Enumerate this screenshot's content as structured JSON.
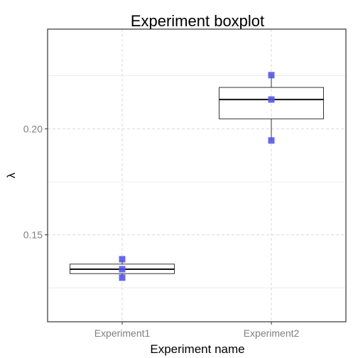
{
  "chart_data": {
    "type": "box",
    "title": "Experiment boxplot",
    "xlabel": "Experiment name",
    "ylabel": "λ",
    "categories": [
      "Experiment1",
      "Experiment2"
    ],
    "ylim": [
      0.109,
      0.247
    ],
    "yticks": [
      0.15,
      0.2
    ],
    "ytick_labels": [
      "0.15",
      "0.20"
    ],
    "grid": true,
    "boxes": [
      {
        "category": "Experiment1",
        "min": 0.1298,
        "q1": 0.1317,
        "median": 0.1338,
        "q3": 0.1362,
        "max": 0.1385
      },
      {
        "category": "Experiment2",
        "min": 0.1945,
        "q1": 0.2047,
        "median": 0.2138,
        "q3": 0.2195,
        "max": 0.2253
      }
    ],
    "points": [
      {
        "category": "Experiment1",
        "values": [
          0.1385,
          0.1338,
          0.1298
        ]
      },
      {
        "category": "Experiment2",
        "values": [
          0.2253,
          0.2138,
          0.1945
        ]
      }
    ],
    "point_color": "#5757e8",
    "panel_border_color": "#333333",
    "grid_color": "#d9d9d9"
  }
}
